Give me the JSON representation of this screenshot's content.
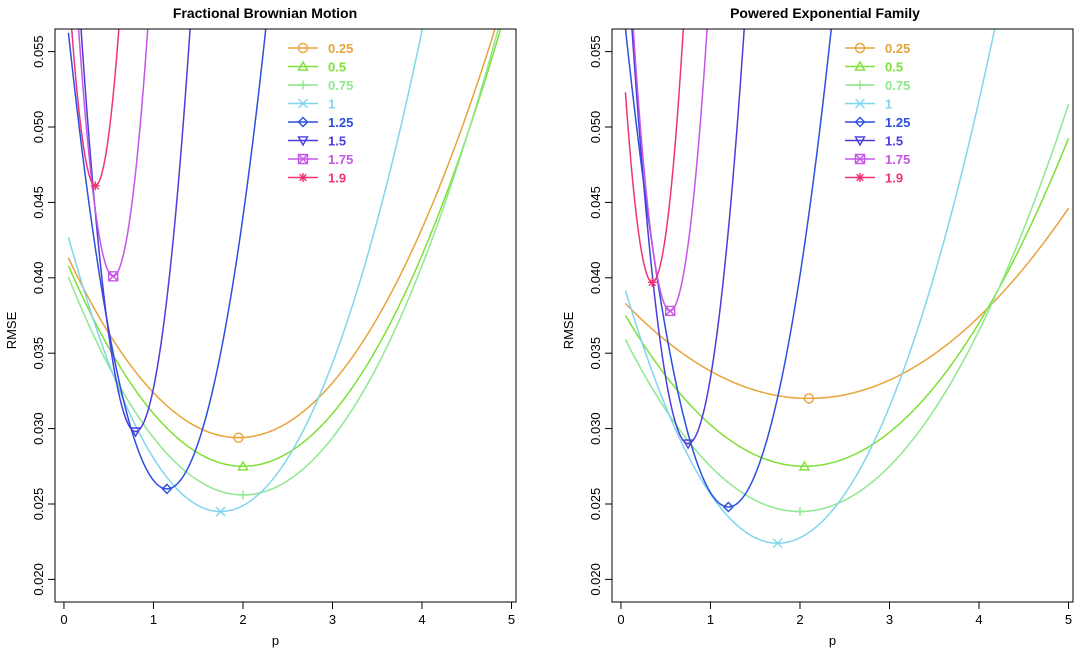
{
  "chart_data": [
    {
      "type": "line",
      "title": "Fractional Brownian Motion",
      "xlabel": "p",
      "ylabel": "RMSE",
      "xlim": [
        -0.1,
        5.05
      ],
      "ylim": [
        0.0185,
        0.0565
      ],
      "x_ticks": [
        0,
        1,
        2,
        3,
        4,
        5
      ],
      "y_ticks": [
        0.02,
        0.025,
        0.03,
        0.035,
        0.04,
        0.045,
        0.05,
        0.055
      ],
      "x_tick_labels": [
        "0",
        "1",
        "2",
        "3",
        "4",
        "5"
      ],
      "y_tick_labels": [
        "0.020",
        "0.025",
        "0.030",
        "0.035",
        "0.040",
        "0.045",
        "0.050",
        "0.055"
      ],
      "grid": false,
      "legend_position": "top-center",
      "series": [
        {
          "name": "0.25",
          "color": "#e8a33a",
          "marker": "circle",
          "min": [
            1.95,
            0.0294
          ],
          "k": 0.0033,
          "x0": 0.05,
          "x1": 5.0
        },
        {
          "name": "0.5",
          "color": "#7ee037",
          "marker": "triangle-up",
          "min": [
            2.0,
            0.0275
          ],
          "k": 0.0035,
          "x0": 0.05,
          "x1": 5.0
        },
        {
          "name": "0.75",
          "color": "#8ee88e",
          "marker": "plus",
          "min": [
            2.0,
            0.0256
          ],
          "k": 0.0038,
          "x0": 0.05,
          "x1": 5.0
        },
        {
          "name": "1",
          "color": "#7fd6ee",
          "marker": "cross",
          "min": [
            1.75,
            0.0245
          ],
          "k": 0.0063,
          "x0": 0.05,
          "x1": 5.0
        },
        {
          "name": "1.25",
          "color": "#2b4fe0",
          "marker": "diamond",
          "min": [
            1.15,
            0.026
          ],
          "k": 0.025,
          "x0": 0.05,
          "x1": 5.0
        },
        {
          "name": "1.5",
          "color": "#4a3ddc",
          "marker": "triangle-down",
          "min": [
            0.8,
            0.0298
          ],
          "k": 0.072,
          "x0": 0.05,
          "x1": 5.0
        },
        {
          "name": "1.75",
          "color": "#c655e8",
          "marker": "square-cross",
          "min": [
            0.55,
            0.0401
          ],
          "k": 0.11,
          "x0": 0.05,
          "x1": 5.0
        },
        {
          "name": "1.9",
          "color": "#f0337a",
          "marker": "star",
          "min": [
            0.35,
            0.0461
          ],
          "k": 0.15,
          "x0": 0.05,
          "x1": 5.0
        }
      ]
    },
    {
      "type": "line",
      "title": "Powered Exponential Family",
      "xlabel": "p",
      "ylabel": "RMSE",
      "xlim": [
        -0.1,
        5.05
      ],
      "ylim": [
        0.0185,
        0.0565
      ],
      "x_ticks": [
        0,
        1,
        2,
        3,
        4,
        5
      ],
      "y_ticks": [
        0.02,
        0.025,
        0.03,
        0.035,
        0.04,
        0.045,
        0.05,
        0.055
      ],
      "x_tick_labels": [
        "0",
        "1",
        "2",
        "3",
        "4",
        "5"
      ],
      "y_tick_labels": [
        "0.020",
        "0.025",
        "0.030",
        "0.035",
        "0.040",
        "0.045",
        "0.050",
        "0.055"
      ],
      "grid": false,
      "legend_position": "top-center",
      "series": [
        {
          "name": "0.25",
          "color": "#e8a33a",
          "marker": "circle",
          "min": [
            2.1,
            0.032
          ],
          "k": 0.0015,
          "x0": 0.05,
          "x1": 5.0
        },
        {
          "name": "0.5",
          "color": "#7ee037",
          "marker": "triangle-up",
          "min": [
            2.05,
            0.0275
          ],
          "k": 0.0025,
          "x0": 0.05,
          "x1": 5.0
        },
        {
          "name": "0.75",
          "color": "#8ee88e",
          "marker": "plus",
          "min": [
            2.0,
            0.0245
          ],
          "k": 0.003,
          "x0": 0.05,
          "x1": 5.0
        },
        {
          "name": "1",
          "color": "#7fd6ee",
          "marker": "cross",
          "min": [
            1.75,
            0.0224
          ],
          "k": 0.0058,
          "x0": 0.05,
          "x1": 5.0
        },
        {
          "name": "1.25",
          "color": "#2b4fe0",
          "marker": "diamond",
          "min": [
            1.2,
            0.0248
          ],
          "k": 0.024,
          "x0": 0.05,
          "x1": 5.0
        },
        {
          "name": "1.5",
          "color": "#4a3ddc",
          "marker": "triangle-down",
          "min": [
            0.75,
            0.029
          ],
          "k": 0.07,
          "x0": 0.05,
          "x1": 5.0
        },
        {
          "name": "1.75",
          "color": "#c655e8",
          "marker": "square-cross",
          "min": [
            0.55,
            0.0378
          ],
          "k": 0.11,
          "x0": 0.05,
          "x1": 5.0
        },
        {
          "name": "1.9",
          "color": "#f0337a",
          "marker": "star",
          "min": [
            0.35,
            0.0397
          ],
          "k": 0.14,
          "x0": 0.05,
          "x1": 5.0
        }
      ]
    }
  ]
}
